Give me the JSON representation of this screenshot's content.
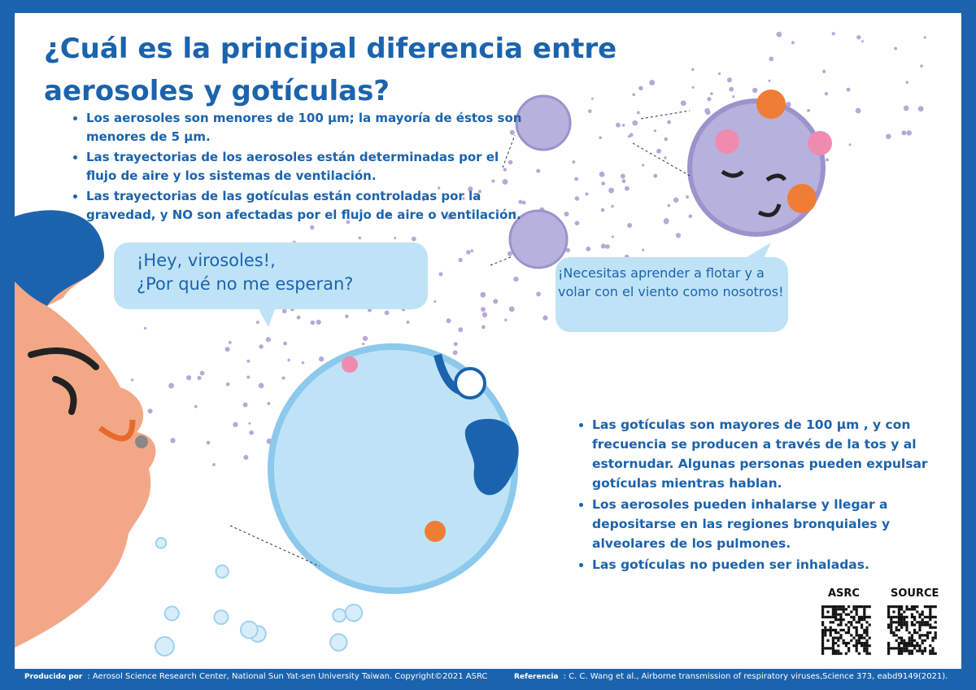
{
  "header": {
    "title_lines": [
      "¿Cuál es la principal diferencia entre",
      "aerosoles y gotículas?"
    ]
  },
  "top_bullets": [
    "Los aerosoles son menores de 100 μm; la mayoría de éstos son menores de 5 μm.",
    "Las trayectorias de los aerosoles están determinadas por el flujo de aire y los sistemas de ventilación.",
    "Las trayectorias de las gotículas están controladas por la gravedad, y NO son afectadas por el flujo de aire o ventilación."
  ],
  "speech": {
    "droplet": [
      "¡Hey, virosoles!,",
      "¿Por qué no me esperan?"
    ],
    "aerosol": "¡Necesitas aprender a flotar y a volar con el viento como nosotros!"
  },
  "bottom_bullets": [
    "Las gotículas son mayores de 100 μm , y con frecuencia se producen a través de la tos y al estornudar. Algunas personas pueden expulsar gotículas mientras hablan.",
    "Los aerosoles pueden inhalarse y llegar a depositarse en las regiones bronquiales y alveolares de los pulmones.",
    "Las gotículas no pueden ser inhaladas."
  ],
  "qr_labels": [
    "ASRC",
    "SOURCE"
  ],
  "footer": {
    "produced_label": "Producido por",
    "produced_sep": ":",
    "produced_text": "Aerosol Science Research Center, National Sun Yat-sen University Taiwan. Copyright©2021 ASRC",
    "reference_label": "Referencia",
    "reference_sep": ":",
    "reference_text": "C. C. Wang et al., Airborne transmission of respiratory viruses,Science 373, eabd9149(2021)."
  }
}
